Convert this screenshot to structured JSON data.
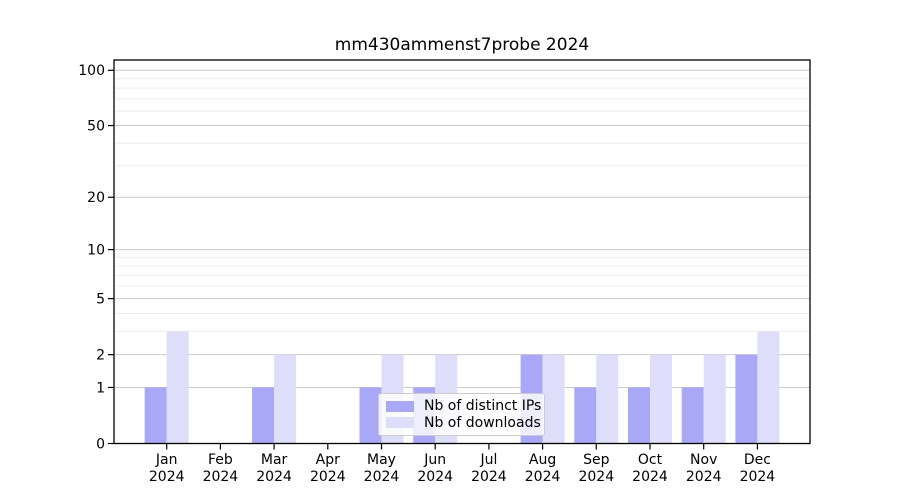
{
  "chart_data": {
    "type": "bar",
    "title": "mm430ammenst7probe 2024",
    "categories": [
      "Jan",
      "Feb",
      "Mar",
      "Apr",
      "May",
      "Jun",
      "Jul",
      "Aug",
      "Sep",
      "Oct",
      "Nov",
      "Dec"
    ],
    "x_year_label": "2024",
    "series": [
      {
        "name": "Nb of distinct IPs",
        "key": "distinct-ips",
        "color": "#a8a8f6",
        "values": [
          1,
          0,
          1,
          0,
          1,
          1,
          0,
          2,
          1,
          1,
          1,
          2
        ]
      },
      {
        "name": "Nb of downloads",
        "key": "downloads",
        "color": "#dedefb",
        "values": [
          3,
          0,
          2,
          0,
          2,
          2,
          0,
          2,
          2,
          2,
          2,
          3
        ]
      }
    ],
    "y_axis": {
      "scale": "log1p",
      "ticks": [
        100,
        50,
        20,
        10,
        5,
        2,
        1,
        0
      ],
      "minor_gridlines": [
        3,
        4,
        6,
        7,
        8,
        9,
        30,
        40,
        60,
        70,
        80,
        90
      ],
      "ylim": [
        0,
        114
      ]
    },
    "legend": {
      "position": "lower center"
    },
    "grid": true,
    "colors": {
      "major_grid": "#c9c9c9",
      "minor_grid": "#ededed",
      "axis": "#000000",
      "text": "#000000"
    }
  }
}
